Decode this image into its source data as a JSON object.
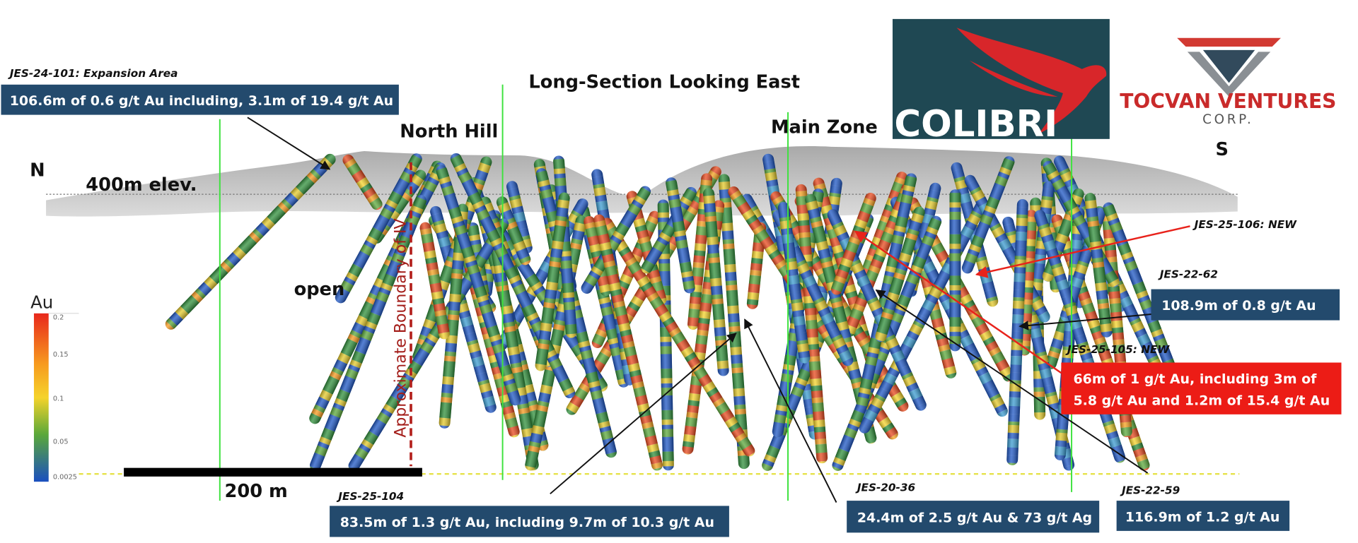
{
  "title": "Long-Section Looking East",
  "logos": {
    "colibri": "COLIBRI",
    "tocvan": "TOCVAN VENTURES",
    "tocvan_sub": "CORP."
  },
  "labels": {
    "north": "N",
    "south": "S",
    "elevation": "400m elev.",
    "open": "open",
    "north_hill": "North Hill",
    "main_zone": "Main Zone",
    "boundary": "Approximate Boundary of IV",
    "scale": "200 m"
  },
  "legend": {
    "title": "Au",
    "ticks": [
      "0.2",
      "0.15",
      "0.1",
      "0.05",
      "0.0025"
    ]
  },
  "callouts": [
    {
      "hole": "JES-24-101: Expansion Area",
      "lines": [
        "106.6m of 0.6 g/t Au including, 3.1m of 19.4 g/t Au"
      ]
    },
    {
      "hole": "JES-25-106: NEW",
      "lines": []
    },
    {
      "hole": "JES-22-62",
      "lines": [
        "108.9m of 0.8 g/t Au"
      ]
    },
    {
      "hole": "JES-25-105: NEW",
      "lines": [
        "66m of 1 g/t Au, including 3m of",
        "5.8 g/t Au and 1.2m of 15.4 g/t Au"
      ]
    },
    {
      "hole": "JES-25-104",
      "lines": [
        "83.5m of 1.3 g/t Au, including 9.7m of 10.3 g/t Au"
      ]
    },
    {
      "hole": "JES-20-36",
      "lines": [
        "24.4m of 2.5 g/t Au & 73 g/t Ag"
      ]
    },
    {
      "hole": "JES-22-59",
      "lines": [
        "116.9m of 1.2 g/t Au"
      ]
    }
  ]
}
